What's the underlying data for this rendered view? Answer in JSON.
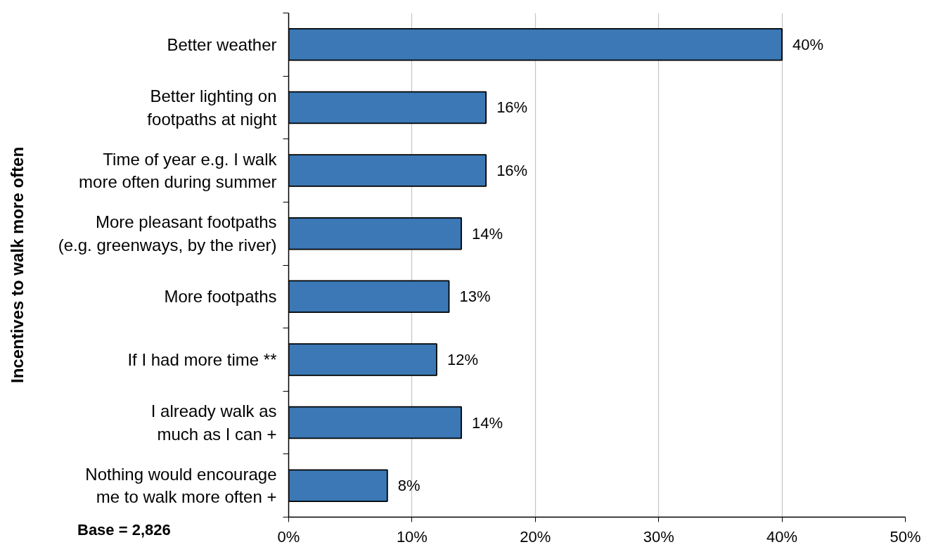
{
  "chart_data": {
    "type": "bar",
    "orientation": "horizontal",
    "ylabel": "Incentives to walk more often",
    "categories": [
      "Better weather",
      "Better lighting on\nfootpaths at night",
      "Time of year e.g. I walk\nmore often during summer",
      "More pleasant footpaths\n(e.g. greenways, by the river)",
      "More footpaths",
      "If I had more time **",
      "I already walk as\nmuch as I can +",
      "Nothing would encourage\nme to walk more often +"
    ],
    "values": [
      40,
      16,
      16,
      14,
      13,
      12,
      14,
      8
    ],
    "value_labels": [
      "40%",
      "16%",
      "16%",
      "14%",
      "13%",
      "12%",
      "14%",
      "8%"
    ],
    "color": "#3b78b5",
    "xlim": [
      0,
      50
    ],
    "xticks": [
      {
        "value": 0,
        "label": "0%"
      },
      {
        "value": 10,
        "label": "10%"
      },
      {
        "value": 20,
        "label": "20%"
      },
      {
        "value": 30,
        "label": "30%"
      },
      {
        "value": 40,
        "label": "40%"
      },
      {
        "value": 50,
        "label": "50%"
      }
    ],
    "grid": "x",
    "annotations": [
      "Base = 2,826"
    ]
  }
}
